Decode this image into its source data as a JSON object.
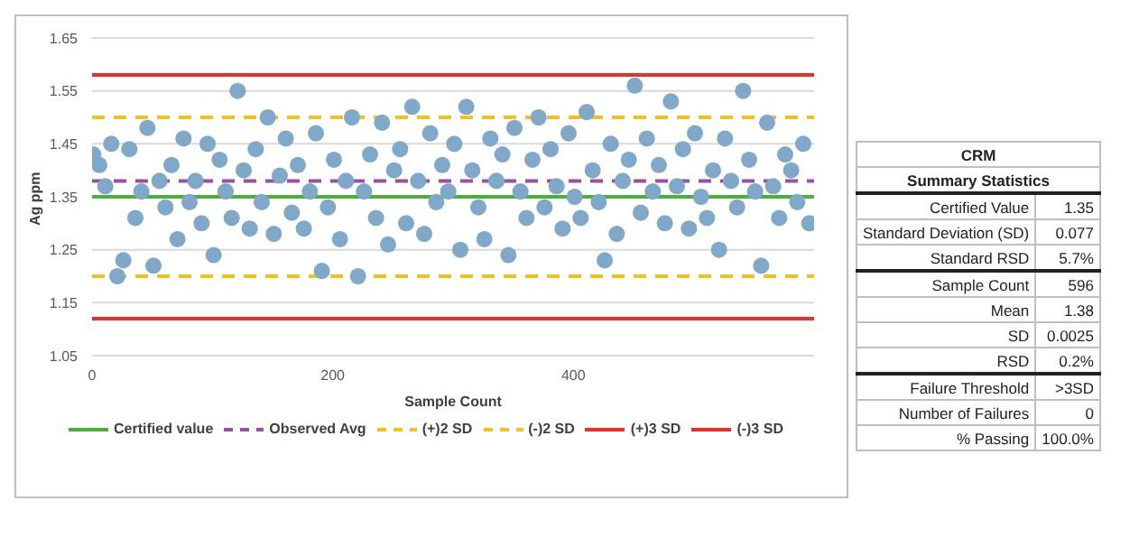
{
  "chart_data": {
    "type": "scatter",
    "xlabel": "Sample Count",
    "ylabel": "Ag ppm",
    "x": [
      1,
      6,
      11,
      16,
      21,
      26,
      31,
      36,
      41,
      46,
      51,
      56,
      61,
      66,
      71,
      76,
      81,
      86,
      91,
      96,
      101,
      106,
      111,
      116,
      121,
      126,
      131,
      136,
      141,
      146,
      151,
      156,
      161,
      166,
      171,
      176,
      181,
      186,
      191,
      196,
      201,
      206,
      211,
      216,
      221,
      226,
      231,
      236,
      241,
      246,
      251,
      256,
      261,
      266,
      271,
      276,
      281,
      286,
      291,
      296,
      301,
      306,
      311,
      316,
      321,
      326,
      331,
      336,
      341,
      346,
      351,
      356,
      361,
      366,
      371,
      376,
      381,
      386,
      391,
      396,
      401,
      406,
      411,
      416,
      421,
      426,
      431,
      436,
      441,
      446,
      451,
      456,
      461,
      466,
      471,
      476,
      481,
      486,
      491,
      496,
      501,
      506,
      511,
      516,
      521,
      526,
      531,
      536,
      541,
      546,
      551,
      556,
      561,
      566,
      571,
      576,
      581,
      586,
      591,
      596
    ],
    "series": [
      {
        "color": "#7fa8c9",
        "values": [
          1.43,
          1.41,
          1.37,
          1.45,
          1.2,
          1.23,
          1.44,
          1.31,
          1.36,
          1.48,
          1.22,
          1.38,
          1.33,
          1.41,
          1.27,
          1.46,
          1.34,
          1.38,
          1.3,
          1.45,
          1.24,
          1.42,
          1.36,
          1.31,
          1.55,
          1.4,
          1.29,
          1.44,
          1.34,
          1.5,
          1.28,
          1.39,
          1.46,
          1.32,
          1.41,
          1.29,
          1.36,
          1.47,
          1.21,
          1.33,
          1.42,
          1.27,
          1.38,
          1.5,
          1.2,
          1.36,
          1.43,
          1.31,
          1.49,
          1.26,
          1.4,
          1.44,
          1.3,
          1.52,
          1.38,
          1.28,
          1.47,
          1.34,
          1.41,
          1.36,
          1.45,
          1.25,
          1.52,
          1.4,
          1.33,
          1.27,
          1.46,
          1.38,
          1.43,
          1.24,
          1.48,
          1.36,
          1.31,
          1.42,
          1.5,
          1.33,
          1.44,
          1.37,
          1.29,
          1.47,
          1.35,
          1.31,
          1.51,
          1.4,
          1.34,
          1.23,
          1.45,
          1.28,
          1.38,
          1.42,
          1.56,
          1.32,
          1.46,
          1.36,
          1.41,
          1.3,
          1.53,
          1.37,
          1.44,
          1.29,
          1.47,
          1.35,
          1.31,
          1.4,
          1.25,
          1.46,
          1.38,
          1.33,
          1.55,
          1.42,
          1.36,
          1.22,
          1.49,
          1.37,
          1.31,
          1.43,
          1.4,
          1.34,
          1.45,
          1.3
        ]
      }
    ],
    "marker": "circle",
    "grid": "y",
    "legend": "bottom",
    "xlim": [
      0,
      600
    ],
    "xticks": [
      0,
      200,
      400
    ],
    "ylim": [
      1.05,
      1.65
    ],
    "yticks": [
      1.05,
      1.15,
      1.25,
      1.35,
      1.45,
      1.55,
      1.65
    ],
    "ref_lines": [
      {
        "axis": "y",
        "value": 1.35,
        "label": "Certified value",
        "color": "#4caf3a",
        "line_style": "solid"
      },
      {
        "axis": "y",
        "value": 1.38,
        "label": "Observed Avg",
        "color": "#9b4fa5",
        "line_style": "dashed"
      },
      {
        "axis": "y",
        "value": 1.5,
        "label": "(+)2 SD",
        "color": "#f2c21b",
        "line_style": "dashed"
      },
      {
        "axis": "y",
        "value": 1.2,
        "label": "(-)2 SD",
        "color": "#f2c21b",
        "line_style": "dashed"
      },
      {
        "axis": "y",
        "value": 1.58,
        "label": "(+)3 SD",
        "color": "#e8302a",
        "line_style": "solid"
      },
      {
        "axis": "y",
        "value": 1.12,
        "label": "(-)3 SD",
        "color": "#e8302a",
        "line_style": "solid"
      }
    ],
    "annotations": [
      "CRM",
      "Summary Statistics",
      "Certified Value",
      "1.35",
      "Standard Deviation (SD)",
      "0.077",
      "Standard RSD",
      "5.7%",
      "Sample Count",
      "596",
      "Mean",
      "1.38",
      "SD",
      "0.0025",
      "RSD",
      "0.2%",
      "Failure Threshold",
      ">3SD",
      "Number of Failures",
      "0",
      "% Passing",
      "100.0%"
    ]
  }
}
